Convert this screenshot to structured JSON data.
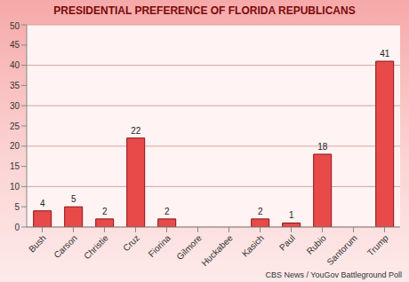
{
  "chart_data": {
    "type": "bar",
    "title": "PRESIDENTIAL PREFERENCE OF FLORIDA REPUBLICANS",
    "annotation": "CBS News / YouGov Battleground Poll",
    "categories": [
      "Bush",
      "Carson",
      "Christie",
      "Cruz",
      "Fiorina",
      "Gilmore",
      "Huckabee",
      "Kasich",
      "Paul",
      "Rubio",
      "Santorum",
      "Trump"
    ],
    "values": [
      4,
      5,
      2,
      22,
      2,
      0,
      0,
      2,
      1,
      18,
      0,
      41
    ],
    "color": "#e84a4a",
    "ylim": [
      0,
      50
    ],
    "yticks": [
      0,
      5,
      10,
      15,
      20,
      25,
      30,
      35,
      40,
      45,
      50
    ],
    "grid": true,
    "data_labels": true
  }
}
